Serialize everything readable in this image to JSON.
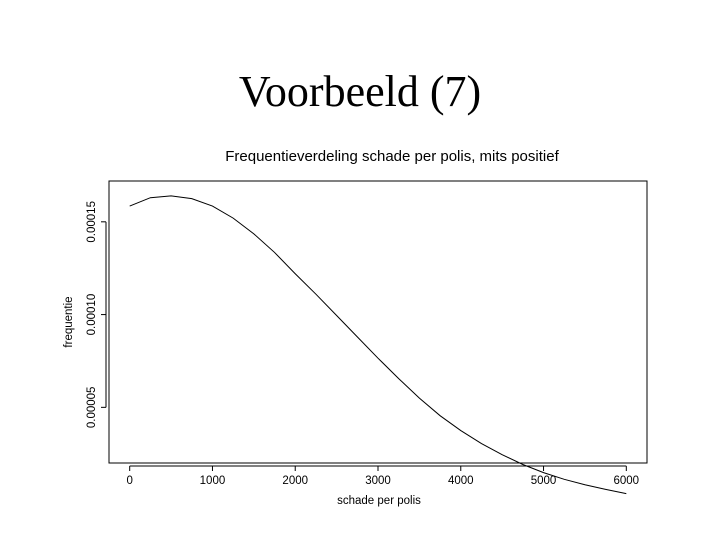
{
  "slide": {
    "title": "Voorbeeld (7)"
  },
  "chart_data": {
    "type": "line",
    "title": "Frequentieverdeling schade per polis, mits positief",
    "xlabel": "schade per polis",
    "ylabel": "frequentie",
    "xlim": [
      -250,
      6250
    ],
    "ylim": [
      2e-05,
      0.000172
    ],
    "x_ticks": [
      0,
      1000,
      2000,
      3000,
      4000,
      5000,
      6000
    ],
    "x_tick_labels": [
      "0",
      "1000",
      "2000",
      "3000",
      "4000",
      "5000",
      "6000"
    ],
    "y_ticks": [
      5e-05,
      0.0001,
      0.00015
    ],
    "y_tick_labels": [
      "0.00005",
      "0.00010",
      "0.00015"
    ],
    "grid": false,
    "series": [
      {
        "x": [
          0,
          250,
          500,
          750,
          1000,
          1250,
          1500,
          1750,
          2000,
          2250,
          2500,
          2750,
          3000,
          3250,
          3500,
          3750,
          4000,
          4250,
          4500,
          4750,
          5000,
          5250,
          5500,
          5750,
          6000
        ],
        "y": [
          0.0001585,
          0.000163,
          0.000164,
          0.0001625,
          0.0001585,
          0.000152,
          0.0001435,
          0.0001335,
          0.000122,
          0.000111,
          9.95e-05,
          8.8e-05,
          7.65e-05,
          6.55e-05,
          5.5e-05,
          4.55e-05,
          3.75e-05,
          3.05e-05,
          2.45e-05,
          1.92e-05,
          1.48e-05,
          1.12e-05,
          8.3e-06,
          5.8e-06,
          3.5e-06
        ]
      }
    ]
  }
}
